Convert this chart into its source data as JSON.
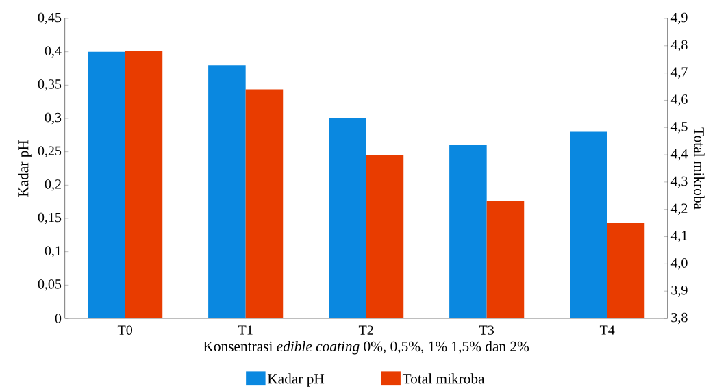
{
  "chart_data": {
    "type": "bar",
    "xlabel": "Konsentrasi *edible coating* 0%, 0,5%, 1% 1,5% dan 2%",
    "ylabel": "Kadar pH",
    "y2label": "Total mikroba",
    "categories": [
      "T0",
      "T1",
      "T2",
      "T3",
      "T4"
    ],
    "series": [
      {
        "name": "Kadar pH",
        "color": "#0a88e0",
        "values": [
          0.4,
          0.38,
          0.3,
          0.26,
          0.28
        ]
      },
      {
        "name": "Total mikroba",
        "color": "#e83c00",
        "axis": "y2",
        "values": [
          4.78,
          4.64,
          4.4,
          4.23,
          4.15
        ]
      }
    ],
    "ylim": [
      0,
      0.45
    ],
    "yticks": [
      0,
      {
        "value": 0.05,
        "label": "0,05"
      },
      {
        "value": 0.1,
        "label": "0,1"
      },
      {
        "value": 0.15,
        "label": "0,15"
      },
      {
        "value": 0.2,
        "label": "0,2"
      },
      {
        "value": 0.25,
        "label": "0,25"
      },
      {
        "value": 0.3,
        "label": "0,3"
      },
      {
        "value": 0.35,
        "label": "0,35"
      },
      {
        "value": 0.4,
        "label": "0,4"
      },
      {
        "value": 0.45,
        "label": "0,45"
      }
    ],
    "y2lim": [
      3.8,
      4.9
    ],
    "y2ticks": [
      {
        "value": 3.8,
        "label": "3,8"
      },
      {
        "value": 3.9,
        "label": "3,9"
      },
      {
        "value": 4.0,
        "label": "4,0"
      },
      {
        "value": 4.1,
        "label": "4,1"
      },
      {
        "value": 4.2,
        "label": "4,2"
      },
      {
        "value": 4.3,
        "label": "4,3"
      },
      {
        "value": 4.4,
        "label": "4,4"
      },
      {
        "value": 4.5,
        "label": "4,5"
      },
      {
        "value": 4.6,
        "label": "4,6"
      },
      {
        "value": 4.7,
        "label": "4,7"
      },
      {
        "value": 4.8,
        "label": "4,8"
      },
      {
        "value": 4.9,
        "label": "4,9"
      }
    ],
    "legend": "bottom"
  }
}
